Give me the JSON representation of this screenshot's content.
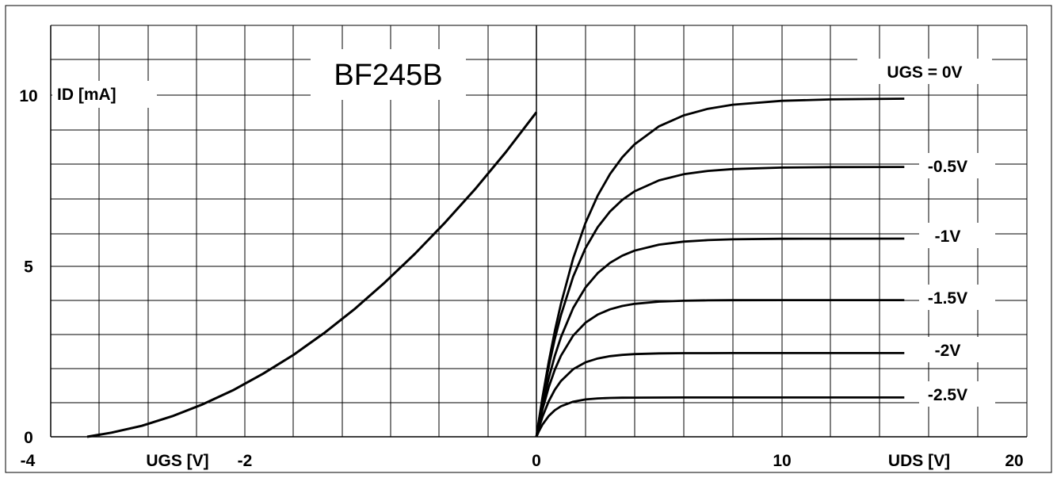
{
  "chart_data": {
    "type": "line",
    "title": "BF245B",
    "ylabel": "ID [mA]",
    "ylim": [
      0,
      12
    ],
    "y_tick_labels": [
      "0",
      "5",
      "10"
    ],
    "grid": true,
    "panels": [
      {
        "id": "transfer",
        "xlabel": "UGS [V]",
        "xlim": [
          -4,
          0
        ],
        "x_tick_labels": [
          "-4",
          "-2",
          "0"
        ],
        "series": [
          {
            "x": [
              -3.7,
              -3.5,
              -3.25,
              -3.0,
              -2.75,
              -2.5,
              -2.25,
              -2.0,
              -1.75,
              -1.5,
              -1.25,
              -1.0,
              -0.75,
              -0.5,
              -0.25,
              0.0
            ],
            "y": [
              0.0,
              0.12,
              0.32,
              0.6,
              0.95,
              1.36,
              1.85,
              2.4,
              3.03,
              3.73,
              4.51,
              5.36,
              6.28,
              7.27,
              8.34,
              9.5
            ]
          }
        ]
      },
      {
        "id": "output",
        "xlabel": "UDS [V]",
        "xlim": [
          0,
          20
        ],
        "x_tick_labels": [
          "0",
          "10",
          "20"
        ],
        "x": [
          0,
          0.1,
          0.25,
          0.5,
          0.75,
          1.0,
          1.5,
          2.0,
          2.5,
          3.0,
          3.5,
          4.0,
          5.0,
          6.0,
          7.0,
          8.0,
          10.0,
          12.0,
          15.0
        ],
        "series": [
          {
            "name": "UGS = 0V",
            "isat": 9.9,
            "k": 0.5
          },
          {
            "name": "-0.5V",
            "isat": 7.9,
            "k": 0.6
          },
          {
            "name": "-1V",
            "isat": 5.8,
            "k": 0.7
          },
          {
            "name": "-1.5V",
            "isat": 4.0,
            "k": 0.9
          },
          {
            "name": "-2V",
            "isat": 2.45,
            "k": 1.1
          },
          {
            "name": "-2.5V",
            "isat": 1.15,
            "k": 1.5
          }
        ]
      }
    ]
  }
}
